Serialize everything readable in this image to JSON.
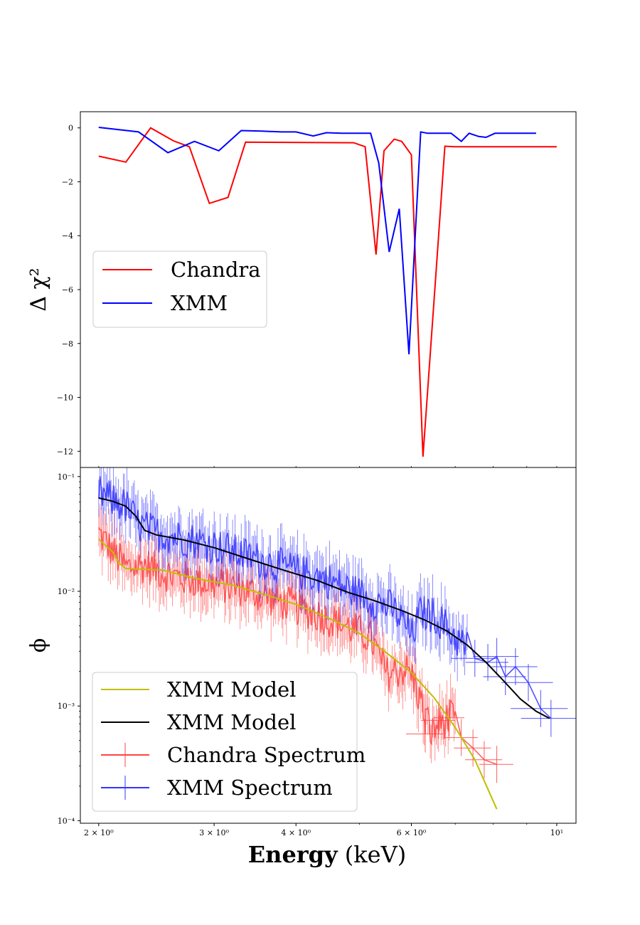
{
  "chart_data": [
    {
      "type": "line",
      "panel": "top",
      "ylabel": "Δ χ²",
      "yticks": [
        "0",
        "−2",
        "−4",
        "−6",
        "−8",
        "−10",
        "−12"
      ],
      "ytick_values": [
        0,
        -2,
        -4,
        -6,
        -8,
        -10,
        -12
      ],
      "ylim": [
        -12.6,
        0.6
      ],
      "xscale": "log",
      "xlim": [
        1.875,
        10.7
      ],
      "legend": {
        "placement": "center-left",
        "entries": [
          "Chandra",
          "XMM"
        ]
      },
      "series": [
        {
          "name": "Chandra",
          "color": "#ff0000",
          "points": [
            [
              2.0,
              -1.05
            ],
            [
              2.2,
              -1.27
            ],
            [
              2.4,
              0.0
            ],
            [
              2.6,
              -0.48
            ],
            [
              2.75,
              -0.7
            ],
            [
              2.95,
              -2.8
            ],
            [
              3.15,
              -2.58
            ],
            [
              3.35,
              -0.53
            ],
            [
              4.9,
              -0.55
            ],
            [
              5.1,
              -0.7
            ],
            [
              5.3,
              -4.7
            ],
            [
              5.45,
              -0.85
            ],
            [
              5.65,
              -0.42
            ],
            [
              5.8,
              -0.5
            ],
            [
              6.0,
              -1.0
            ],
            [
              6.25,
              -12.2
            ],
            [
              6.55,
              -5.2
            ],
            [
              6.75,
              -0.68
            ],
            [
              7.0,
              -0.7
            ],
            [
              10.0,
              -0.7
            ]
          ]
        },
        {
          "name": "XMM",
          "color": "#0000ff",
          "points": [
            [
              2.0,
              0.02
            ],
            [
              2.3,
              -0.15
            ],
            [
              2.55,
              -0.92
            ],
            [
              2.8,
              -0.5
            ],
            [
              3.05,
              -0.85
            ],
            [
              3.3,
              -0.1
            ],
            [
              3.55,
              -0.12
            ],
            [
              3.8,
              -0.15
            ],
            [
              4.0,
              -0.15
            ],
            [
              4.25,
              -0.3
            ],
            [
              4.45,
              -0.18
            ],
            [
              4.7,
              -0.2
            ],
            [
              5.2,
              -0.2
            ],
            [
              5.35,
              -1.3
            ],
            [
              5.55,
              -4.6
            ],
            [
              5.75,
              -3.0
            ],
            [
              5.95,
              -8.4
            ],
            [
              6.2,
              -0.15
            ],
            [
              6.35,
              -0.2
            ],
            [
              6.9,
              -0.2
            ],
            [
              7.15,
              -0.5
            ],
            [
              7.35,
              -0.2
            ],
            [
              7.6,
              -0.32
            ],
            [
              7.8,
              -0.35
            ],
            [
              8.05,
              -0.2
            ],
            [
              8.5,
              -0.2
            ],
            [
              9.3,
              -0.2
            ]
          ]
        }
      ]
    },
    {
      "type": "line",
      "panel": "bottom",
      "xlabel_bold": "Energy",
      "xlabel_rest": "(keV)",
      "ylabel": "ϕ",
      "xscale": "log",
      "yscale": "log",
      "xlim": [
        1.875,
        10.7
      ],
      "ylim": [
        9.5e-05,
        0.12
      ],
      "xticks": [
        {
          "value": 2,
          "label": "2 × 10⁰"
        },
        {
          "value": 3,
          "label": "3 × 10⁰"
        },
        {
          "value": 4,
          "label": "4 × 10⁰"
        },
        {
          "value": 6,
          "label": "6 × 10⁰"
        },
        {
          "value": 10,
          "label": "10¹"
        }
      ],
      "yticks": [
        {
          "value": 0.1,
          "label": "10⁻¹"
        },
        {
          "value": 0.01,
          "label": "10⁻²"
        },
        {
          "value": 0.001,
          "label": "10⁻³"
        },
        {
          "value": 0.0001,
          "label": "10⁻⁴"
        }
      ],
      "legend": {
        "placement": "lower-left",
        "entries": [
          "XMM Model",
          "XMM Model",
          "Chandra Spectrum",
          "XMM Spectrum"
        ]
      },
      "models": [
        {
          "name": "XMM Model",
          "color": "#bfbf00",
          "points": [
            [
              2.0,
              0.0285
            ],
            [
              2.1,
              0.022
            ],
            [
              2.15,
              0.0175
            ],
            [
              2.2,
              0.0158
            ],
            [
              2.3,
              0.0156
            ],
            [
              2.5,
              0.0153
            ],
            [
              2.8,
              0.013
            ],
            [
              3.2,
              0.0113
            ],
            [
              3.6,
              0.0093
            ],
            [
              4.0,
              0.0077
            ],
            [
              4.5,
              0.0058
            ],
            [
              5.0,
              0.0043
            ],
            [
              5.5,
              0.0029
            ],
            [
              6.0,
              0.00195
            ],
            [
              6.5,
              0.00118
            ],
            [
              7.0,
              0.00065
            ],
            [
              7.5,
              0.00034
            ],
            [
              8.1,
              0.000126
            ]
          ]
        },
        {
          "name": "XMM Model",
          "color": "#000000",
          "points": [
            [
              2.0,
              0.065
            ],
            [
              2.1,
              0.061
            ],
            [
              2.2,
              0.055
            ],
            [
              2.28,
              0.045
            ],
            [
              2.35,
              0.034
            ],
            [
              2.45,
              0.031
            ],
            [
              2.7,
              0.028
            ],
            [
              3.0,
              0.024
            ],
            [
              3.4,
              0.019
            ],
            [
              3.8,
              0.0155
            ],
            [
              4.3,
              0.0125
            ],
            [
              4.8,
              0.0098
            ],
            [
              5.3,
              0.0082
            ],
            [
              5.8,
              0.0068
            ],
            [
              6.3,
              0.0056
            ],
            [
              6.8,
              0.0045
            ],
            [
              7.3,
              0.0034
            ],
            [
              7.8,
              0.0024
            ],
            [
              8.3,
              0.00165
            ],
            [
              8.8,
              0.00115
            ],
            [
              9.3,
              0.0009
            ],
            [
              9.75,
              0.00078
            ]
          ]
        }
      ],
      "spectra": [
        {
          "name": "Chandra Spectrum",
          "color": "#ff4444",
          "dense_range": [
            2.0,
            7.0
          ],
          "anchors": [
            [
              2.0,
              0.032
            ],
            [
              2.1,
              0.022
            ],
            [
              2.2,
              0.016
            ],
            [
              2.35,
              0.017
            ],
            [
              2.6,
              0.0135
            ],
            [
              2.9,
              0.012
            ],
            [
              3.3,
              0.0105
            ],
            [
              3.7,
              0.0085
            ],
            [
              4.2,
              0.0066
            ],
            [
              4.7,
              0.0052
            ],
            [
              5.2,
              0.0039
            ],
            [
              5.5,
              0.0019
            ],
            [
              5.85,
              0.0021
            ],
            [
              6.0,
              0.0019
            ],
            [
              6.2,
              0.0011
            ],
            [
              6.45,
              0.00057
            ],
            [
              6.65,
              0.00072
            ],
            [
              6.9,
              0.00079
            ],
            [
              7.15,
              0.00053
            ],
            [
              7.45,
              0.00043
            ],
            [
              7.75,
              0.00034
            ],
            [
              8.05,
              0.00031
            ]
          ],
          "sparse_bins": [
            [
              6.3,
              0.00057,
              0.13
            ],
            [
              6.6,
              0.00075,
              0.12
            ],
            [
              6.85,
              0.00079,
              0.11
            ],
            [
              7.15,
              0.00053,
              0.12
            ],
            [
              7.45,
              0.00043,
              0.13
            ],
            [
              7.75,
              0.00034,
              0.13
            ],
            [
              8.1,
              0.00031,
              0.12
            ]
          ]
        },
        {
          "name": "XMM Spectrum",
          "color": "#3333ff",
          "dense_range": [
            2.0,
            7.3
          ],
          "anchors": [
            [
              2.0,
              0.072
            ],
            [
              2.1,
              0.062
            ],
            [
              2.2,
              0.055
            ],
            [
              2.3,
              0.038
            ],
            [
              2.45,
              0.032
            ],
            [
              2.7,
              0.029
            ],
            [
              3.0,
              0.025
            ],
            [
              3.3,
              0.021
            ],
            [
              3.6,
              0.018
            ],
            [
              4.0,
              0.015
            ],
            [
              4.4,
              0.013
            ],
            [
              4.8,
              0.0105
            ],
            [
              5.2,
              0.0085
            ],
            [
              5.6,
              0.0071
            ],
            [
              5.9,
              0.005
            ],
            [
              6.0,
              0.004
            ],
            [
              6.2,
              0.0065
            ],
            [
              6.5,
              0.0062
            ],
            [
              6.8,
              0.0048
            ],
            [
              7.1,
              0.0036
            ],
            [
              7.3,
              0.0032
            ],
            [
              7.7,
              0.0025
            ],
            [
              8.0,
              0.0026
            ],
            [
              8.3,
              0.0017
            ],
            [
              8.6,
              0.0022
            ],
            [
              8.9,
              0.0015
            ],
            [
              9.4,
              0.00085
            ],
            [
              9.8,
              0.00078
            ]
          ],
          "sparse_bins": [
            [
              7.5,
              0.0026,
              0.16
            ],
            [
              7.85,
              0.0024,
              0.15
            ],
            [
              8.1,
              0.0027,
              0.16
            ],
            [
              8.35,
              0.0018,
              0.15
            ],
            [
              8.65,
              0.0022,
              0.16
            ],
            [
              9.05,
              0.0016,
              0.18
            ],
            [
              9.45,
              0.00095,
              0.2
            ],
            [
              9.8,
              0.00078,
              0.2
            ]
          ]
        }
      ]
    }
  ]
}
